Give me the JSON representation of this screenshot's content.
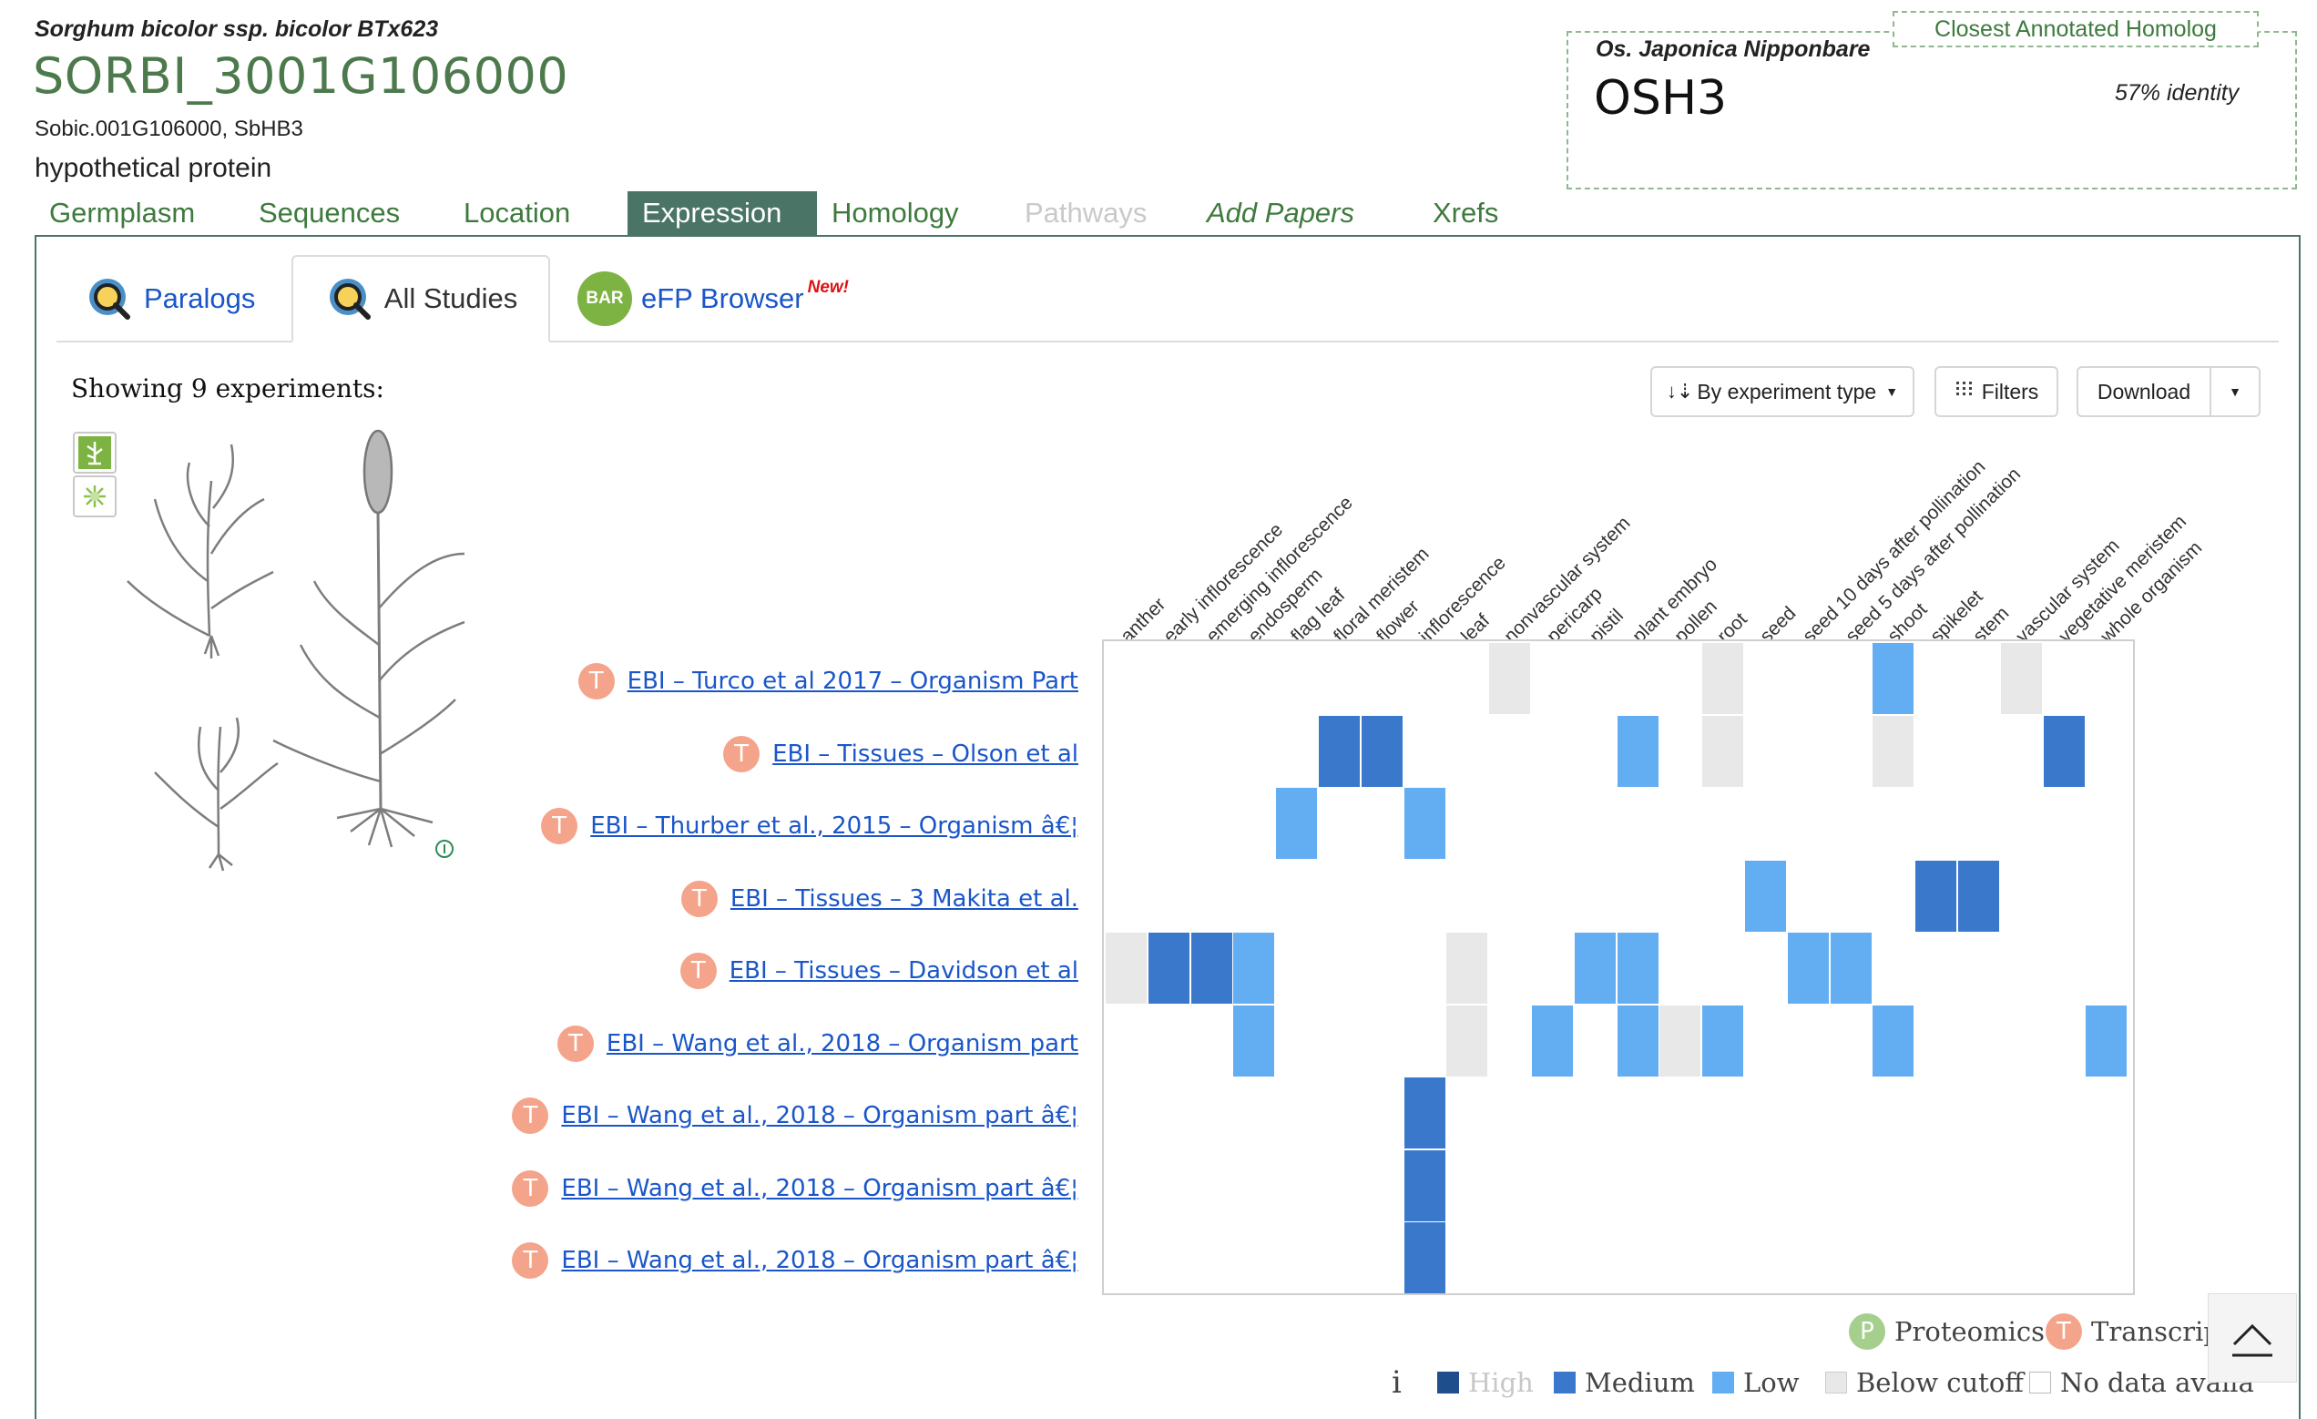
{
  "gene": {
    "species": "Sorghum bicolor ssp. bicolor BTx623",
    "id": "SORBI_3001G106000",
    "synonyms": "Sobic.001G106000, SbHB3",
    "description": "hypothetical protein"
  },
  "homolog": {
    "tag": "Closest Annotated Homolog",
    "species": "Os. Japonica Nipponbare",
    "name": "OSH3",
    "identity": "57% identity"
  },
  "nav": [
    {
      "label": "Germplasm",
      "state": "normal"
    },
    {
      "label": "Sequences",
      "state": "normal"
    },
    {
      "label": "Location",
      "state": "normal"
    },
    {
      "label": "Expression",
      "state": "active"
    },
    {
      "label": "Homology",
      "state": "normal"
    },
    {
      "label": "Pathways",
      "state": "disabled"
    },
    {
      "label": "Add Papers",
      "state": "italic"
    },
    {
      "label": "Xrefs",
      "state": "normal"
    }
  ],
  "tabs": {
    "paralogs": "Paralogs",
    "all_studies": "All Studies",
    "efp": "eFP Browser",
    "efp_badge": "New!",
    "bar_icon": "BAR"
  },
  "toolbar": {
    "showing": "Showing 9 experiments:",
    "sort": "By experiment type",
    "filters": "Filters",
    "download": "Download"
  },
  "icons": {
    "sort": "sort-icon",
    "filter": "filter-icon",
    "caret": "caret-down-icon",
    "magnifier": "magnifier-icon",
    "plant": "plant-icon",
    "cell": "cell-icon",
    "scroll_top": "chevron-up-icon"
  },
  "columns": [
    "anther",
    "early inflorescence",
    "emerging inflorescence",
    "endosperm",
    "flag leaf",
    "floral meristem",
    "flower",
    "inflorescence",
    "leaf",
    "nonvascular system",
    "pericarp",
    "pistil",
    "plant embryo",
    "pollen",
    "root",
    "seed",
    "seed 10 days after pollination",
    "seed 5 days after pollination",
    "shoot",
    "spikelet",
    "stem",
    "vascular system",
    "vegetative meristem",
    "whole organism"
  ],
  "studies": [
    {
      "label": "EBI – Turco et al 2017 – Organism Part",
      "type": "T"
    },
    {
      "label": "EBI – Tissues – Olson et al",
      "type": "T"
    },
    {
      "label": "EBI – Thurber et al., 2015 – Organism â€¦",
      "type": "T"
    },
    {
      "label": "EBI – Tissues – 3 Makita et al.",
      "type": "T"
    },
    {
      "label": "EBI – Tissues – Davidson et al",
      "type": "T"
    },
    {
      "label": "EBI – Wang et al., 2018 – Organism part",
      "type": "T"
    },
    {
      "label": "EBI – Wang et al., 2018 – Organism part â€¦",
      "type": "T"
    },
    {
      "label": "EBI – Wang et al., 2018 – Organism part â€¦",
      "type": "T"
    },
    {
      "label": "EBI – Wang et al., 2018 – Organism part â€¦",
      "type": "T"
    }
  ],
  "heatmap": [
    {
      "row": 0,
      "col": 9,
      "level": "below"
    },
    {
      "row": 0,
      "col": 14,
      "level": "below"
    },
    {
      "row": 0,
      "col": 18,
      "level": "low"
    },
    {
      "row": 0,
      "col": 21,
      "level": "below"
    },
    {
      "row": 1,
      "col": 5,
      "level": "medium"
    },
    {
      "row": 1,
      "col": 6,
      "level": "medium"
    },
    {
      "row": 1,
      "col": 12,
      "level": "low"
    },
    {
      "row": 1,
      "col": 14,
      "level": "below"
    },
    {
      "row": 1,
      "col": 18,
      "level": "below"
    },
    {
      "row": 1,
      "col": 22,
      "level": "medium"
    },
    {
      "row": 2,
      "col": 4,
      "level": "low"
    },
    {
      "row": 2,
      "col": 7,
      "level": "low"
    },
    {
      "row": 3,
      "col": 15,
      "level": "low"
    },
    {
      "row": 3,
      "col": 19,
      "level": "medium"
    },
    {
      "row": 3,
      "col": 20,
      "level": "medium"
    },
    {
      "row": 4,
      "col": 0,
      "level": "below"
    },
    {
      "row": 4,
      "col": 1,
      "level": "medium"
    },
    {
      "row": 4,
      "col": 2,
      "level": "medium"
    },
    {
      "row": 4,
      "col": 3,
      "level": "low"
    },
    {
      "row": 4,
      "col": 8,
      "level": "below"
    },
    {
      "row": 4,
      "col": 11,
      "level": "low"
    },
    {
      "row": 4,
      "col": 12,
      "level": "low"
    },
    {
      "row": 4,
      "col": 16,
      "level": "low"
    },
    {
      "row": 4,
      "col": 17,
      "level": "low"
    },
    {
      "row": 5,
      "col": 3,
      "level": "low"
    },
    {
      "row": 5,
      "col": 8,
      "level": "below"
    },
    {
      "row": 5,
      "col": 10,
      "level": "low"
    },
    {
      "row": 5,
      "col": 12,
      "level": "low"
    },
    {
      "row": 5,
      "col": 13,
      "level": "below"
    },
    {
      "row": 5,
      "col": 14,
      "level": "low"
    },
    {
      "row": 5,
      "col": 18,
      "level": "low"
    },
    {
      "row": 5,
      "col": 23,
      "level": "low"
    },
    {
      "row": 6,
      "col": 7,
      "level": "medium"
    },
    {
      "row": 7,
      "col": 7,
      "level": "medium"
    },
    {
      "row": 8,
      "col": 7,
      "level": "medium"
    }
  ],
  "colors": {
    "high": "#1f4e8c",
    "medium": "#3a78cc",
    "low": "#63adf2",
    "below": "#e8e8e8",
    "nodata": "#ffffff",
    "accent_green": "#4a7566",
    "link": "#1a56c9"
  },
  "legend": {
    "proteomics_badge": "P",
    "proteomics": "Proteomics",
    "transcriptomics_badge": "T",
    "transcriptomics": "Transcripto",
    "info": "i",
    "high": "High",
    "medium": "Medium",
    "low": "Low",
    "below": "Below cutoff",
    "nodata": "No data availa"
  }
}
